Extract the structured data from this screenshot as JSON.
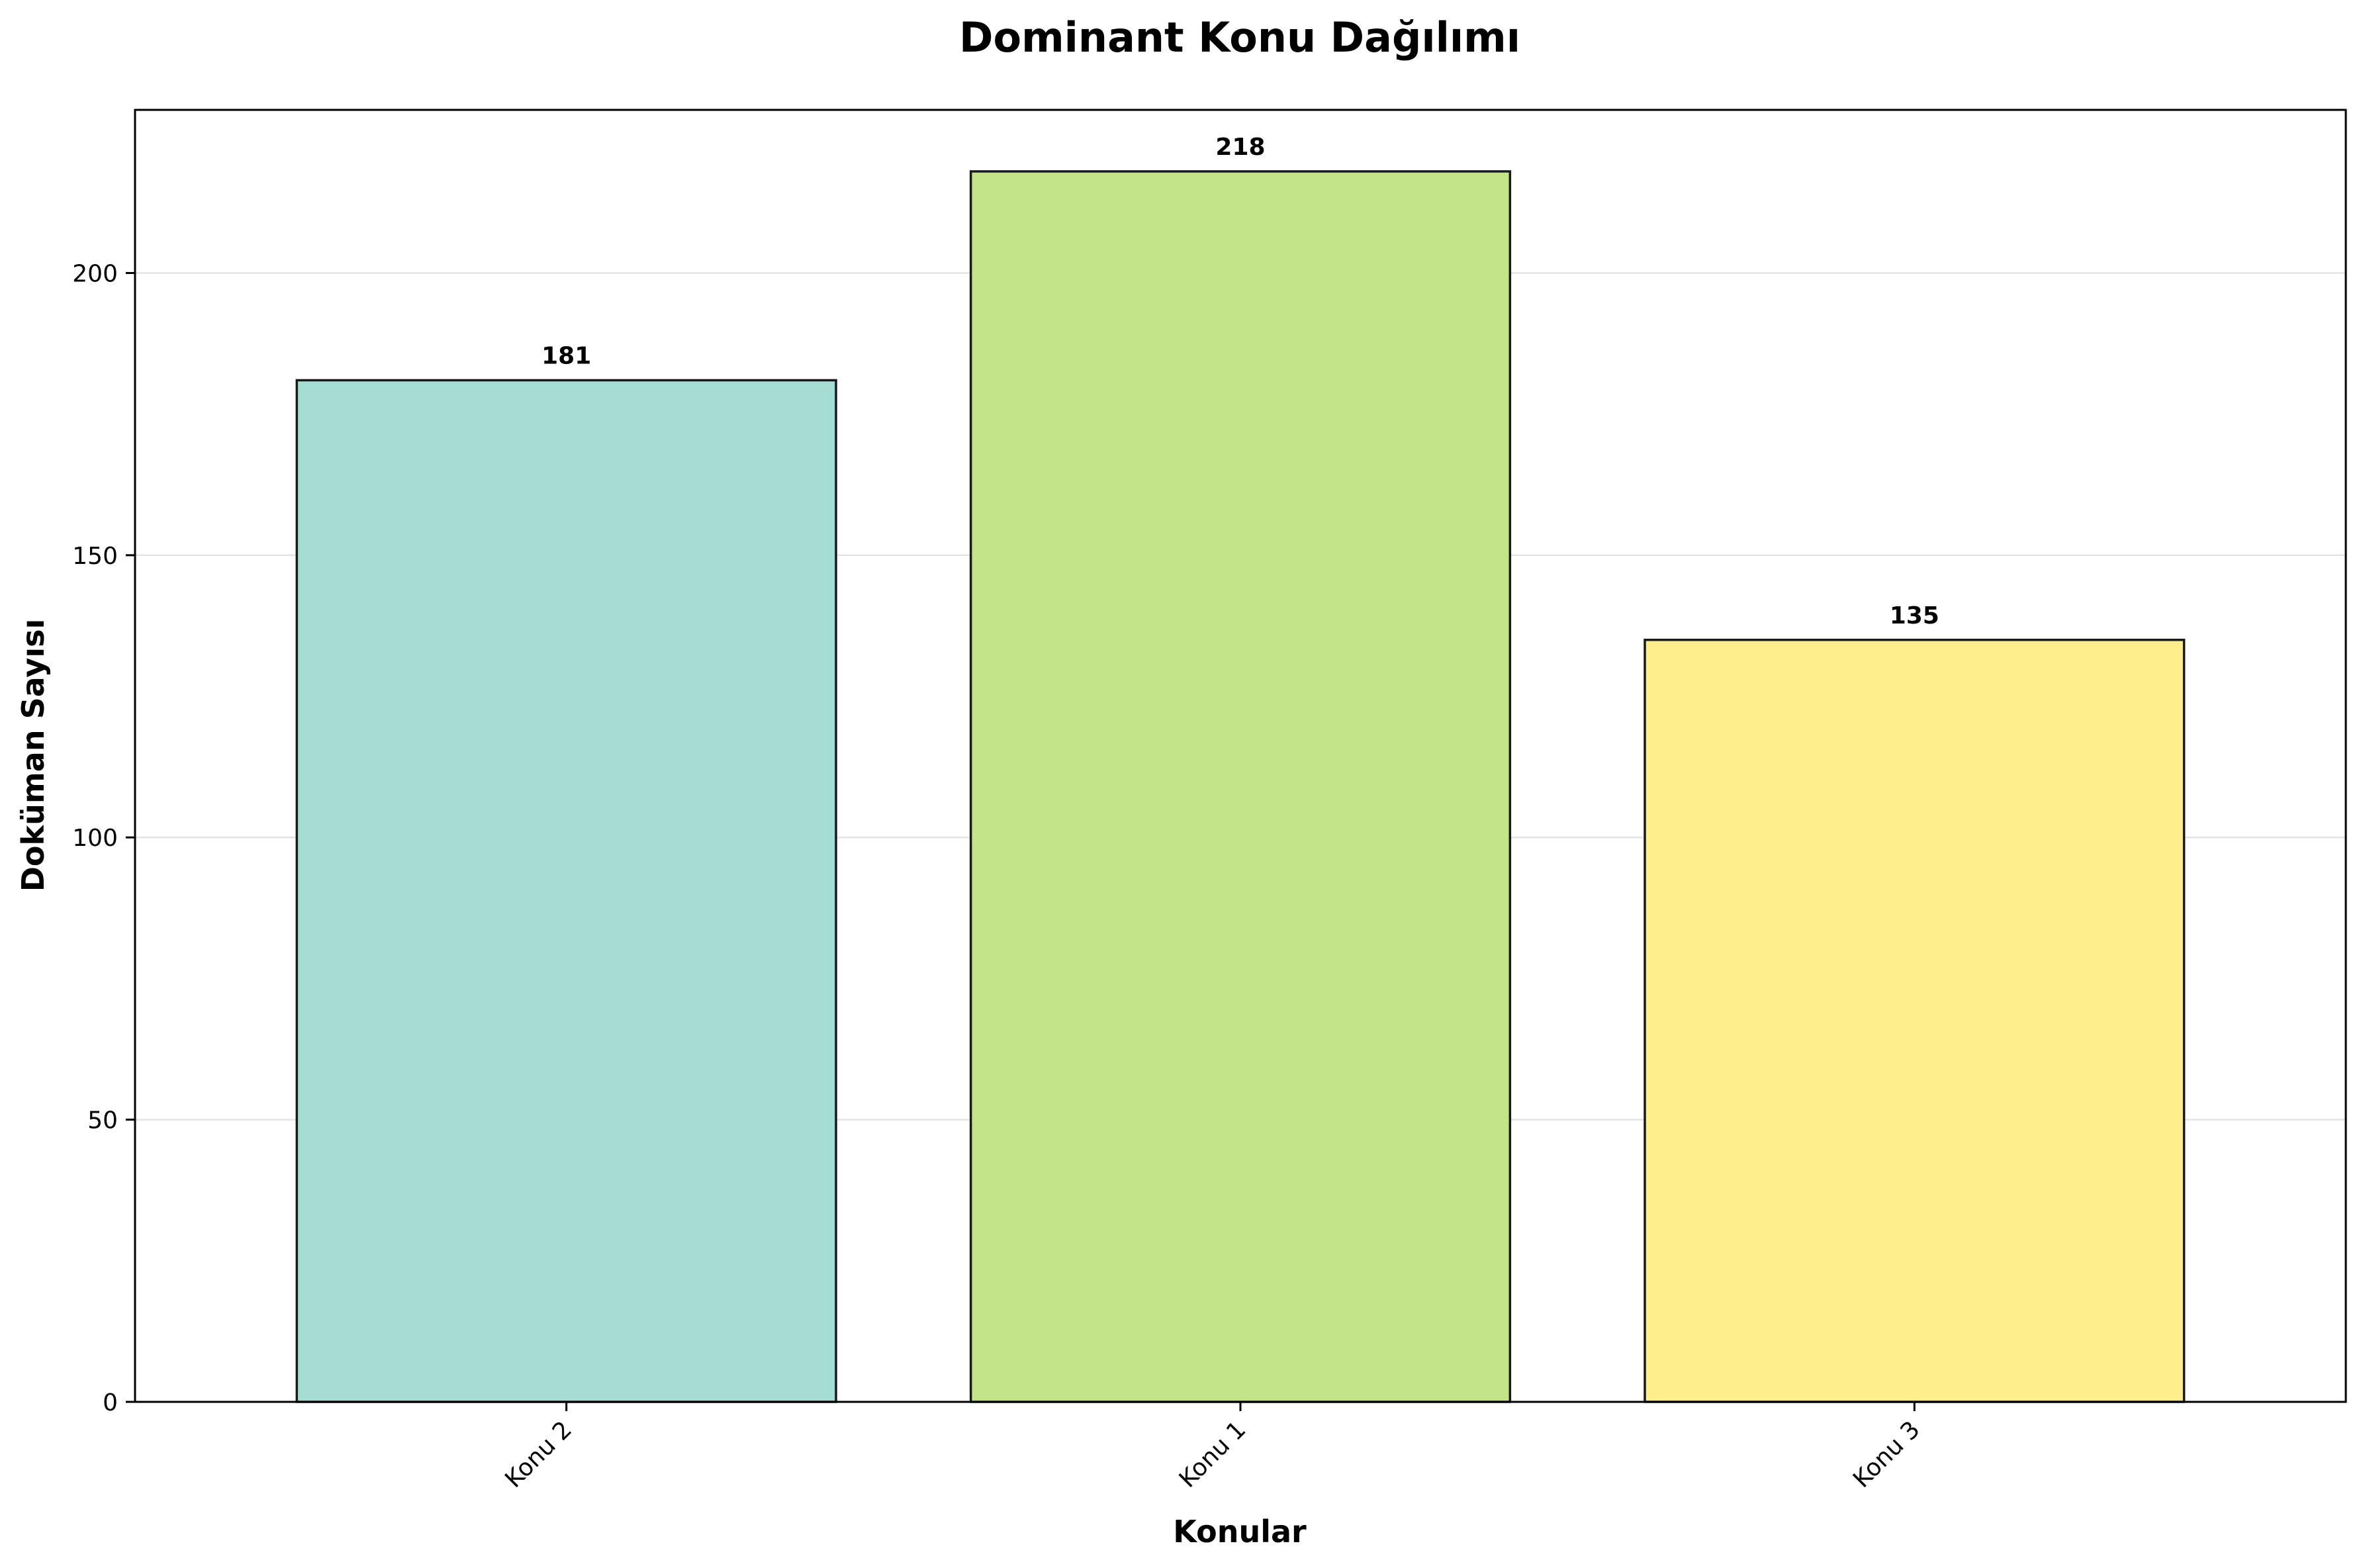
{
  "chart_data": {
    "type": "bar",
    "title": "Dominant Konu Dağılımı",
    "xlabel": "Konular",
    "ylabel": "Doküman Sayısı",
    "categories": [
      "Konu 2",
      "Konu 1",
      "Konu 3"
    ],
    "values": [
      181,
      218,
      135
    ],
    "value_labels": [
      "181",
      "218",
      "135"
    ],
    "colors": [
      "#a5ddd4",
      "#c3e387",
      "#ffee8b"
    ],
    "edge_color": "#1a1a1a",
    "ylim": [
      0,
      228.9
    ],
    "yticks": [
      0,
      50,
      100,
      150,
      200
    ],
    "ytick_labels": [
      "0",
      "50",
      "100",
      "150",
      "200"
    ],
    "xtick_rotation": "45°",
    "grid": "y-axis only",
    "legend": "none"
  }
}
